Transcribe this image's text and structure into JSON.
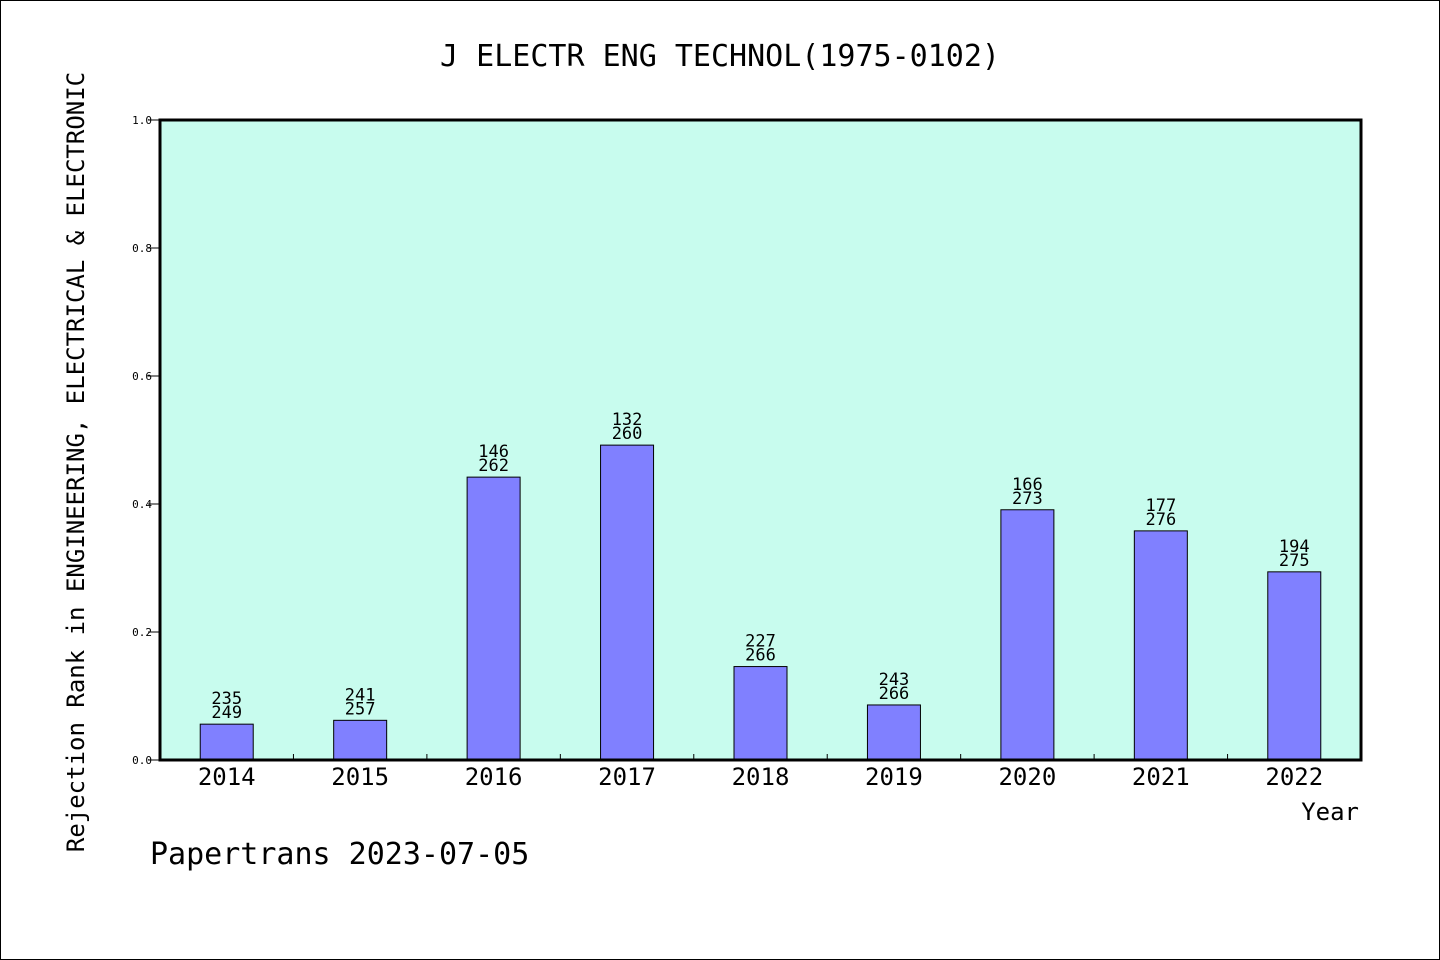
{
  "chart_data": {
    "type": "bar",
    "title": "J ELECTR ENG TECHNOL(1975-0102)",
    "xlabel": "Year",
    "ylabel": "Rejection Rank in ENGINEERING, ELECTRICAL & ELECTRONIC",
    "categories": [
      "2014",
      "2015",
      "2016",
      "2017",
      "2018",
      "2019",
      "2020",
      "2021",
      "2022"
    ],
    "values": [
      0.056,
      0.062,
      0.442,
      0.492,
      0.146,
      0.086,
      0.391,
      0.358,
      0.294
    ],
    "labels_top": [
      "235",
      "241",
      "146",
      "132",
      "227",
      "243",
      "166",
      "177",
      "194"
    ],
    "labels_bottom": [
      "249",
      "257",
      "262",
      "260",
      "266",
      "266",
      "273",
      "276",
      "275"
    ],
    "ylim": [
      0,
      1.0
    ],
    "yticks": [
      "0.0",
      "0.2",
      "0.4",
      "0.6",
      "0.8",
      "1.0"
    ],
    "grid": false,
    "colors": {
      "plot_background": "#c8fcee",
      "bar_fill": "#8080ff",
      "bar_stroke": "#000000"
    }
  },
  "footer": "Papertrans 2023-07-05"
}
